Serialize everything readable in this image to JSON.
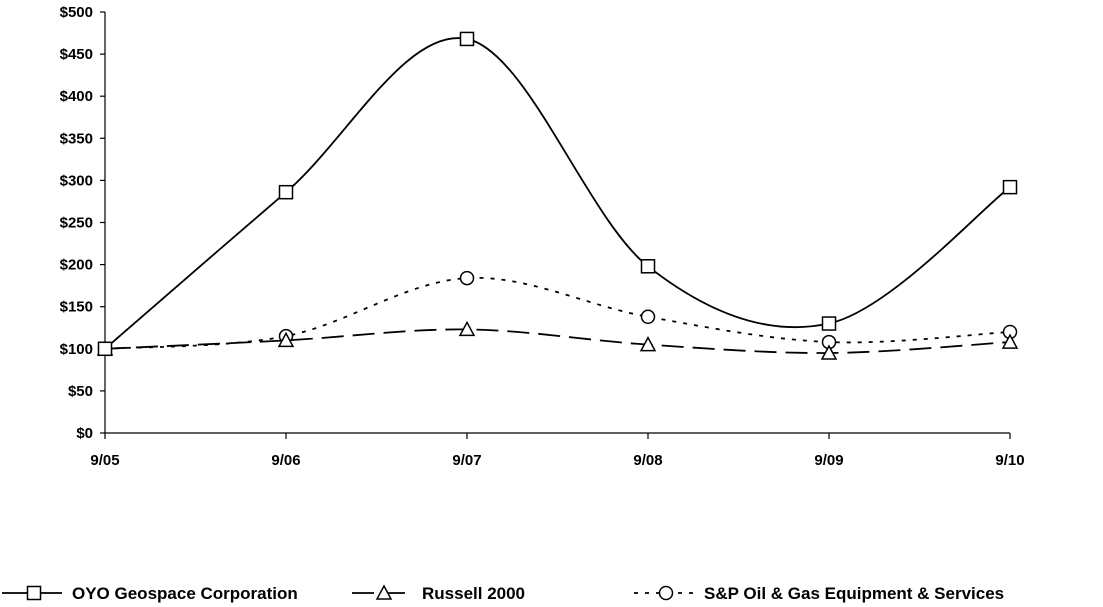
{
  "chart_data": {
    "type": "line",
    "categories": [
      "9/05",
      "9/06",
      "9/07",
      "9/08",
      "9/09",
      "9/10"
    ],
    "ylim": [
      0,
      500
    ],
    "yticks": [
      0,
      50,
      100,
      150,
      200,
      250,
      300,
      350,
      400,
      450,
      500
    ],
    "ytick_labels": [
      "$0",
      "$50",
      "$100",
      "$150",
      "$200",
      "$250",
      "$300",
      "$350",
      "$400",
      "$450",
      "$500"
    ],
    "grid": false,
    "legend_position": "bottom",
    "series": [
      {
        "name": "OYO Geospace Corporation",
        "marker": "square",
        "dash": "solid",
        "color": "#000000",
        "values": [
          100,
          286,
          468,
          198,
          130,
          292
        ]
      },
      {
        "name": "Russell 2000",
        "marker": "triangle",
        "dash": "dashed",
        "color": "#000000",
        "values": [
          100,
          110,
          123,
          105,
          95,
          108
        ]
      },
      {
        "name": "S&P Oil & Gas Equipment & Services",
        "marker": "circle",
        "dash": "dotted",
        "color": "#000000",
        "values": [
          100,
          115,
          184,
          138,
          108,
          120
        ]
      }
    ]
  }
}
